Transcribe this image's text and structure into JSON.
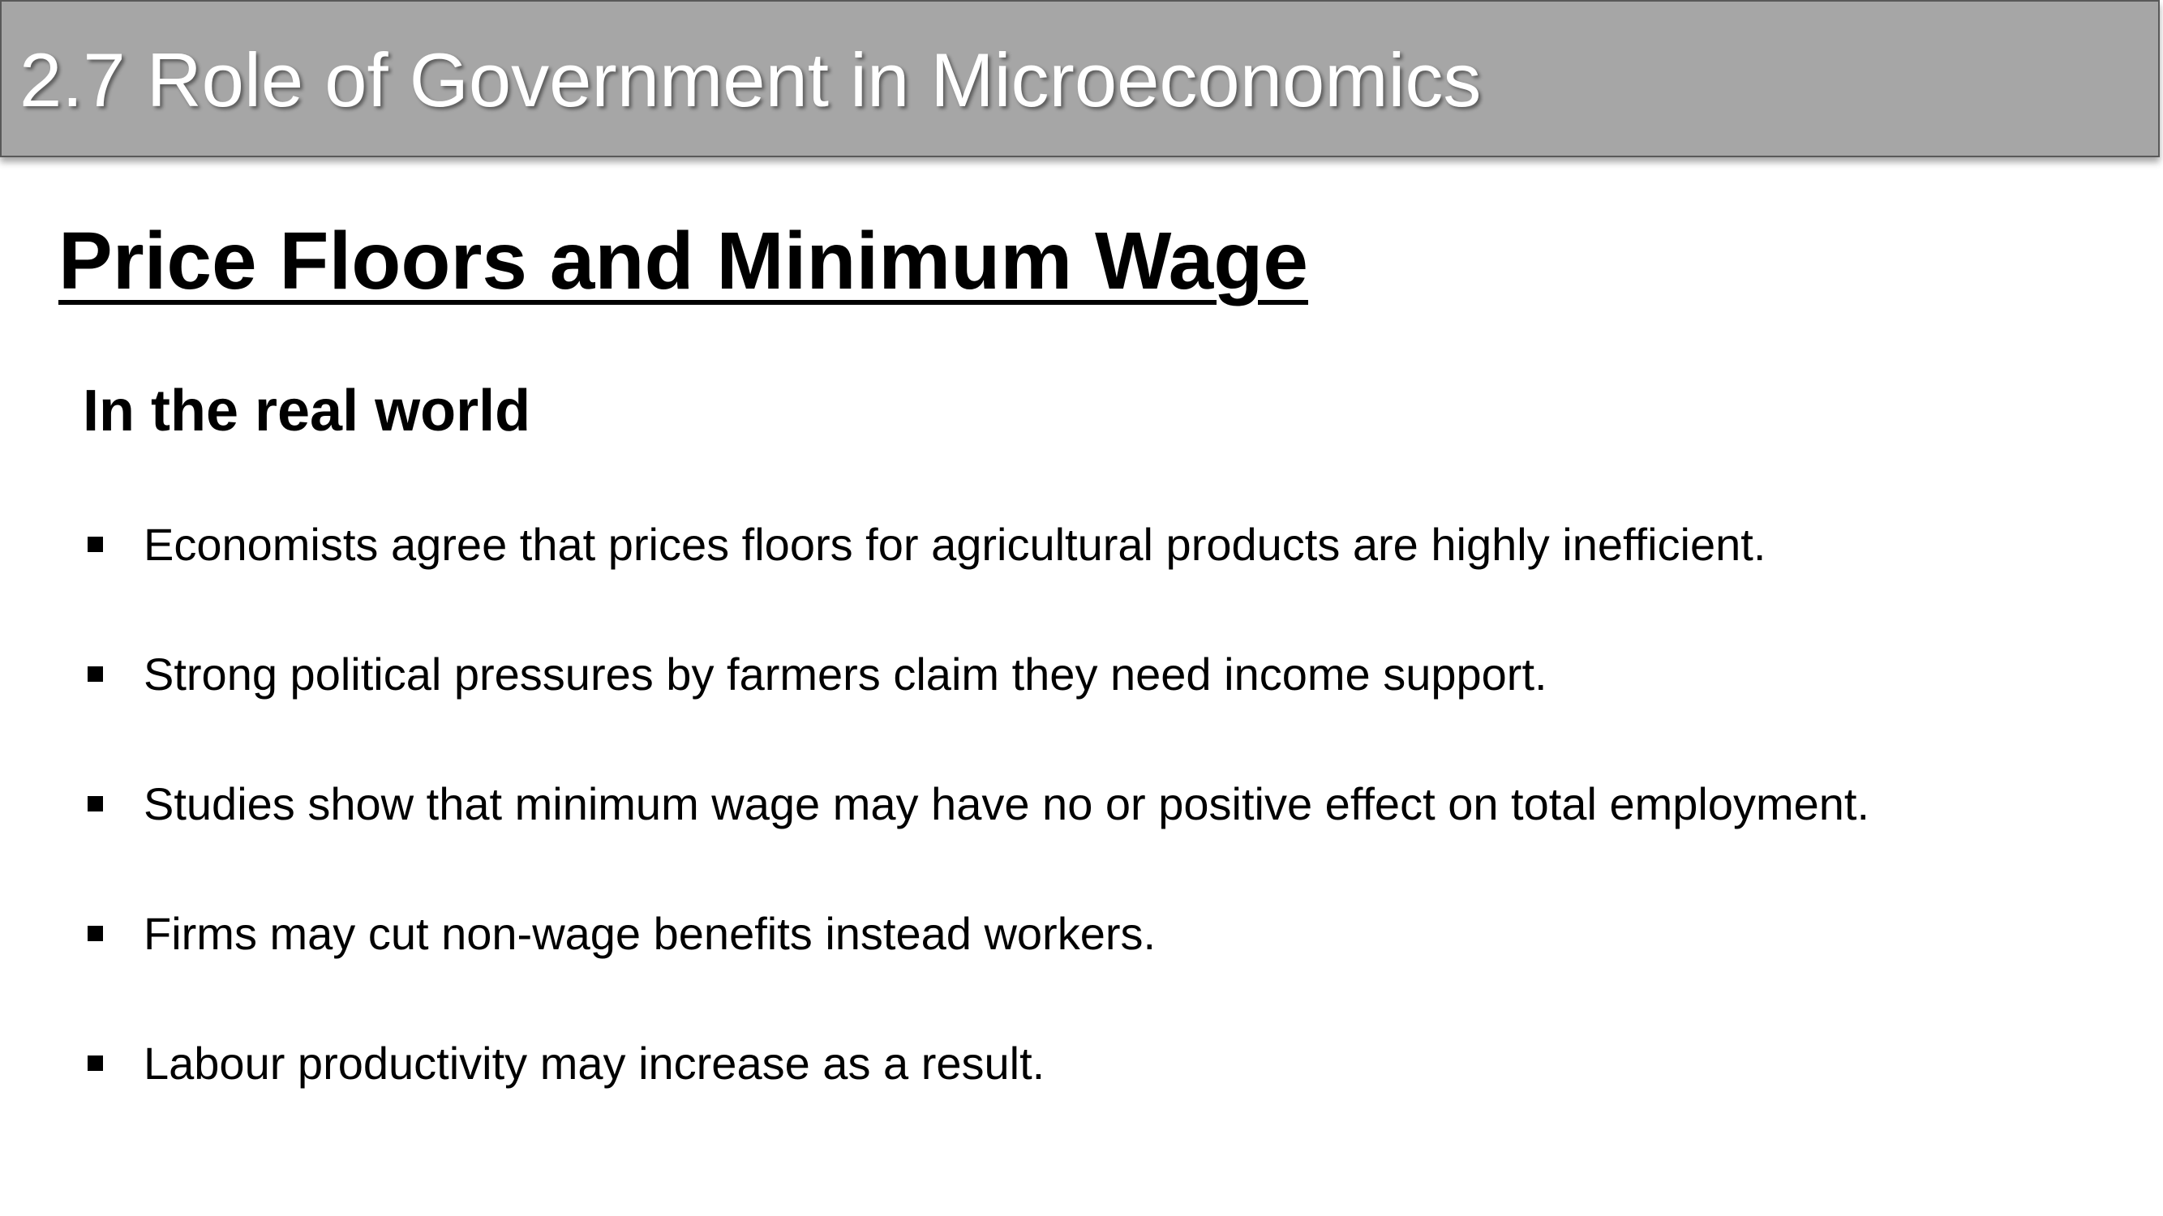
{
  "header": {
    "title": "2.7 Role of Government in Microeconomics"
  },
  "section": {
    "title": "Price Floors and Minimum Wage",
    "subheading": "In the real world"
  },
  "bullets": [
    {
      "text": "Economists agree that prices floors for agricultural products are highly inefficient."
    },
    {
      "text": "Strong political pressures by farmers claim they need income support."
    },
    {
      "text": "Studies show that minimum wage may have no or positive effect on total employment."
    },
    {
      "text": "Firms may cut non-wage benefits instead workers."
    },
    {
      "text": "Labour productivity may increase as a result."
    }
  ],
  "colors": {
    "header_bg": "#a6a6a6",
    "header_text": "#ffffff",
    "body_text": "#000000"
  }
}
